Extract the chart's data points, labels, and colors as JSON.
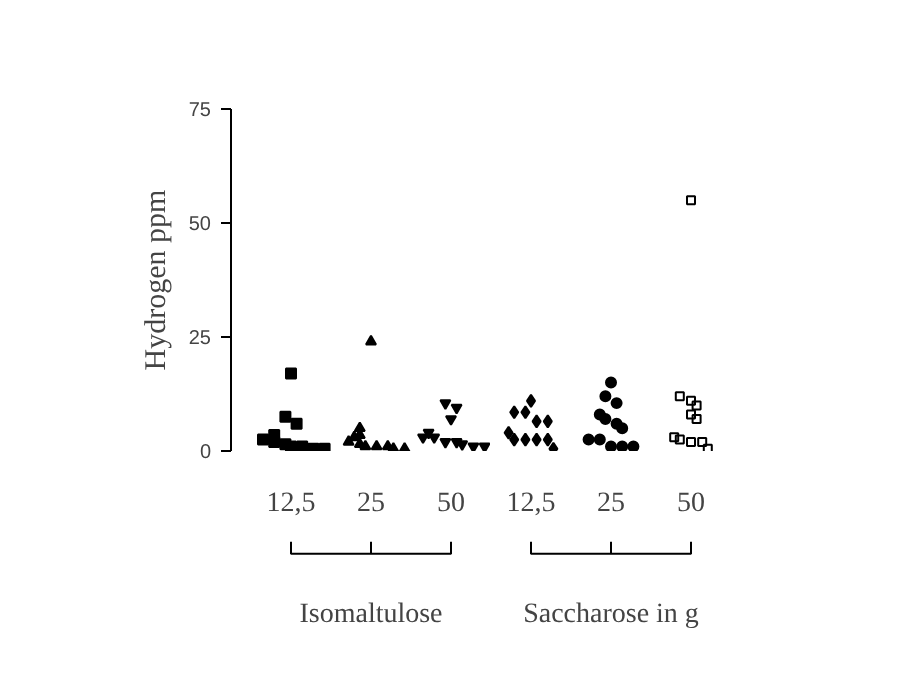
{
  "chart_data": [
    {
      "type": "scatter",
      "ylabel": "Hydrogen ppm",
      "xlabel": "Isomaltulose",
      "categories": [
        "12,5",
        "25",
        "50"
      ],
      "series": [
        {
          "color": "#000000",
          "marker": "square",
          "x": [
            "12,5",
            "12,5",
            "12,5",
            "12,5",
            "12,5",
            "12,5",
            "12,5",
            "12,5",
            "12,5",
            "12,5",
            "12,5"
          ],
          "values": [
            17,
            7.5,
            6,
            3.5,
            2.5,
            2,
            1.5,
            1,
            1,
            0.5,
            0.5
          ]
        },
        {
          "color": "#000000",
          "marker": "triangle",
          "x": [
            "25",
            "25",
            "25",
            "25",
            "25",
            "25",
            "25",
            "25",
            "25",
            "25",
            "25"
          ],
          "values": [
            24,
            5,
            3.5,
            3,
            2,
            1.5,
            1,
            1,
            1,
            0.5,
            0.5
          ]
        },
        {
          "color": "#000000",
          "marker": "triangle",
          "x": [
            "50",
            "50",
            "50",
            "50",
            "50",
            "50",
            "50",
            "50",
            "50",
            "50",
            "50"
          ],
          "values": [
            10.5,
            9.5,
            7,
            4,
            3,
            3,
            2,
            2,
            1.5,
            1,
            1
          ]
        }
      ],
      "ylim": [
        0,
        75
      ],
      "yticks": [
        0,
        25,
        50,
        75
      ],
      "grid": false
    },
    {
      "type": "scatter",
      "xlabel": "Saccharose in g",
      "categories": [
        "12,5",
        "25",
        "50"
      ],
      "series": [
        {
          "color": "#000000",
          "marker": "diamond",
          "x": [
            "12,5",
            "12,5",
            "12,5",
            "12,5",
            "12,5",
            "12,5",
            "12,5",
            "12,5",
            "12,5",
            "12,5",
            "12,5"
          ],
          "values": [
            11,
            8.5,
            8.5,
            6.5,
            6.5,
            4,
            2.5,
            2.5,
            2.5,
            2.5,
            0.5
          ]
        },
        {
          "color": "#000000",
          "marker": "circle",
          "x": [
            "25",
            "25",
            "25",
            "25",
            "25",
            "25",
            "25",
            "25",
            "25",
            "25",
            "25",
            "25"
          ],
          "values": [
            15,
            12,
            10.5,
            8,
            7,
            6,
            5,
            2.5,
            2.5,
            1,
            1,
            1
          ]
        },
        {
          "color": "#000000",
          "marker": "square",
          "x": [
            "50",
            "50",
            "50",
            "50",
            "50",
            "50",
            "50",
            "50",
            "50",
            "50",
            "50"
          ],
          "values": [
            55,
            12,
            11,
            10,
            8,
            7,
            3,
            2.5,
            2,
            2,
            0.5
          ]
        }
      ],
      "ylim": [
        0,
        75
      ],
      "tick_labels": "x",
      "grid": false
    }
  ]
}
